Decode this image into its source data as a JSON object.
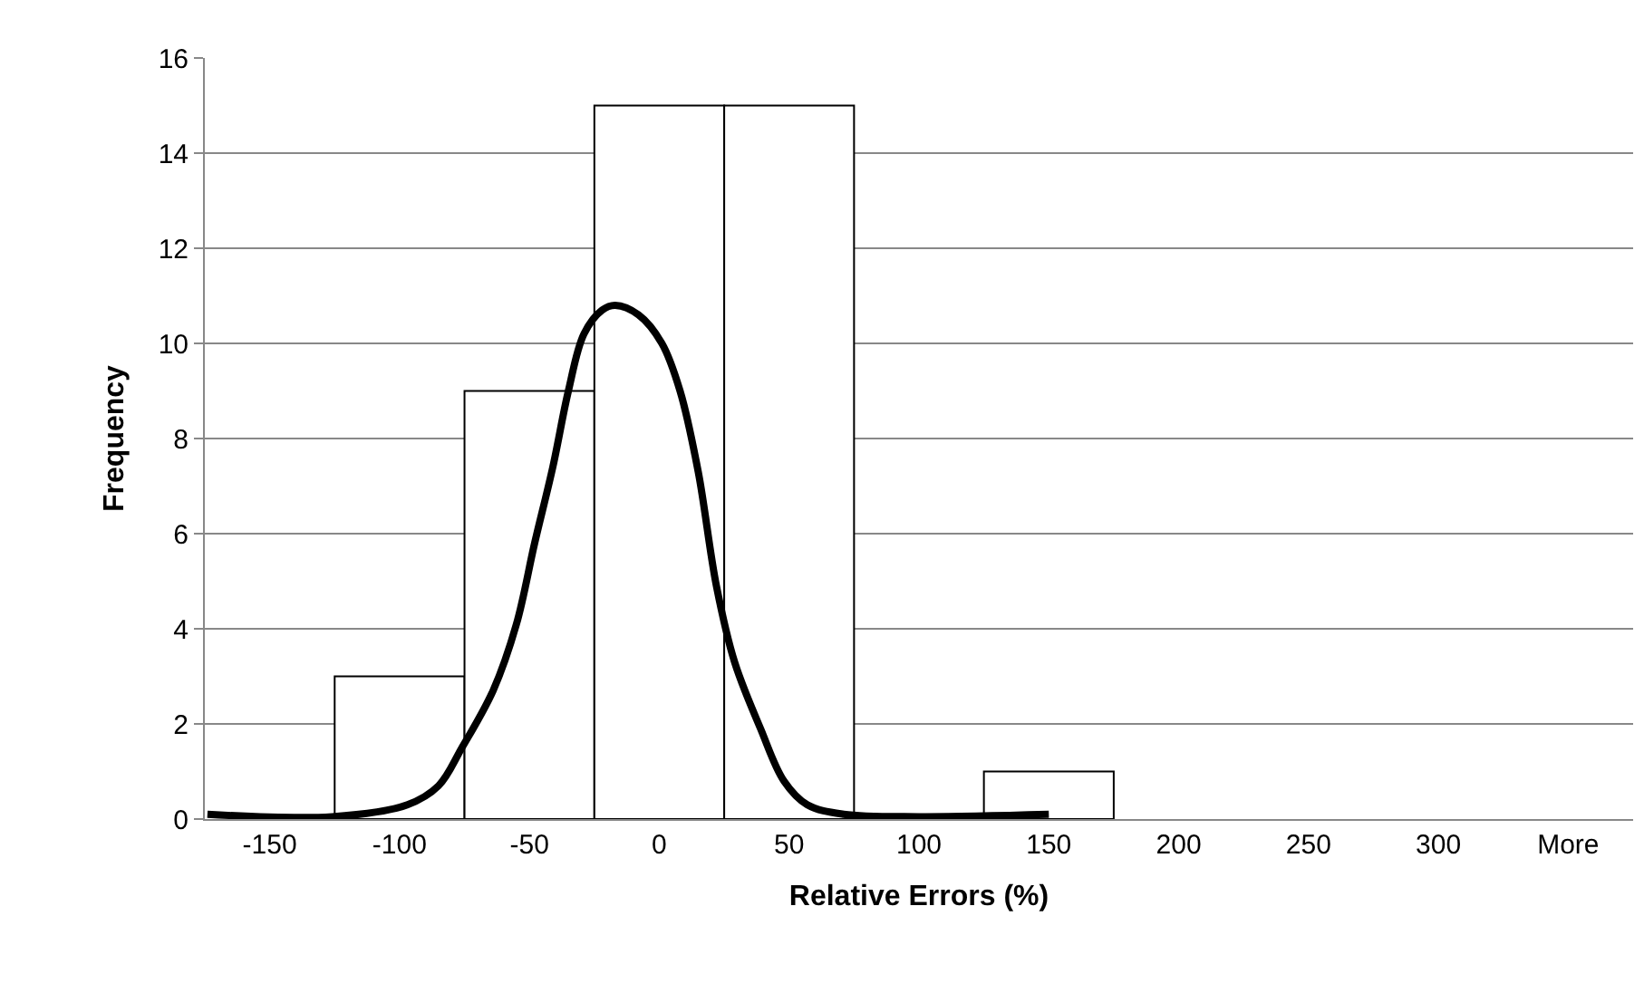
{
  "chart_data": {
    "type": "bar",
    "xlabel": "Relative Errors (%)",
    "ylabel": "Frequency",
    "x": [
      -150,
      -100,
      -50,
      0,
      50,
      100,
      150,
      200,
      250,
      300,
      350
    ],
    "series": [
      {
        "color": "#ffffff",
        "values": [
          0,
          3,
          9,
          15,
          15,
          0,
          1,
          0,
          0,
          0,
          0
        ]
      },
      {
        "type": "line",
        "color": "#000000",
        "marker": "none",
        "x": [
          -174,
          -126,
          -97,
          -85,
          -76,
          -64,
          -55,
          -48,
          -41,
          -35,
          -29,
          -22,
          -17,
          -8,
          1,
          8,
          15,
          22,
          29,
          39,
          48,
          57,
          71,
          100,
          150
        ],
        "values": [
          0.1,
          0.05,
          0.3,
          0.7,
          1.5,
          2.7,
          4.1,
          5.8,
          7.4,
          9,
          10.2,
          10.7,
          10.8,
          10.6,
          10,
          9,
          7.3,
          4.9,
          3.3,
          1.9,
          0.8,
          0.3,
          0.1,
          0.05,
          0.1
        ]
      }
    ],
    "xlim": [
      -175,
      375
    ],
    "xticks": [
      -150,
      -100,
      -50,
      0,
      50,
      100,
      150,
      200,
      250,
      300,
      {
        "value": 350,
        "label": "More"
      }
    ],
    "ylim": [
      0,
      16
    ],
    "yticks": [
      0,
      2,
      4,
      6,
      8,
      10,
      12,
      14,
      16
    ],
    "grid": "y"
  }
}
